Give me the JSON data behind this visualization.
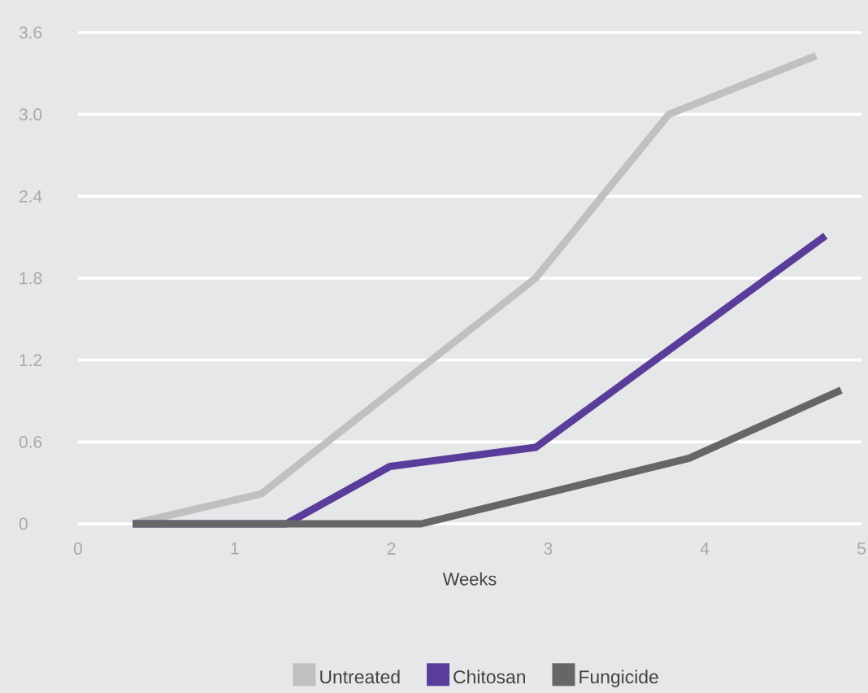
{
  "chart_data": {
    "type": "line",
    "xlabel": "Weeks",
    "xlim": [
      0,
      5
    ],
    "ylim": [
      0,
      3.6
    ],
    "xticks": [
      0,
      1,
      2,
      3,
      4,
      5
    ],
    "yticks": [
      0,
      0.6,
      1.2,
      1.8,
      2.4,
      {
        "value": 3,
        "label": "3.0"
      },
      3.6
    ],
    "grid": "y",
    "legend": "bottom",
    "series": [
      {
        "name": "Untreated",
        "color": "#c0c0c0",
        "x": [
          0.35,
          1.17,
          2.92,
          3.77,
          4.71
        ],
        "values": [
          0,
          0.22,
          1.8,
          3.0,
          3.43
        ]
      },
      {
        "name": "Chitosan",
        "color": "#5a3d9a",
        "x": [
          0.35,
          1.33,
          1.99,
          2.92,
          4.77
        ],
        "values": [
          0,
          0,
          0.42,
          0.56,
          2.11
        ]
      },
      {
        "name": "Fungicide",
        "color": "#666666",
        "x": [
          0.35,
          2.19,
          3.9,
          4.87
        ],
        "values": [
          0,
          0,
          0.48,
          0.98
        ]
      }
    ]
  }
}
